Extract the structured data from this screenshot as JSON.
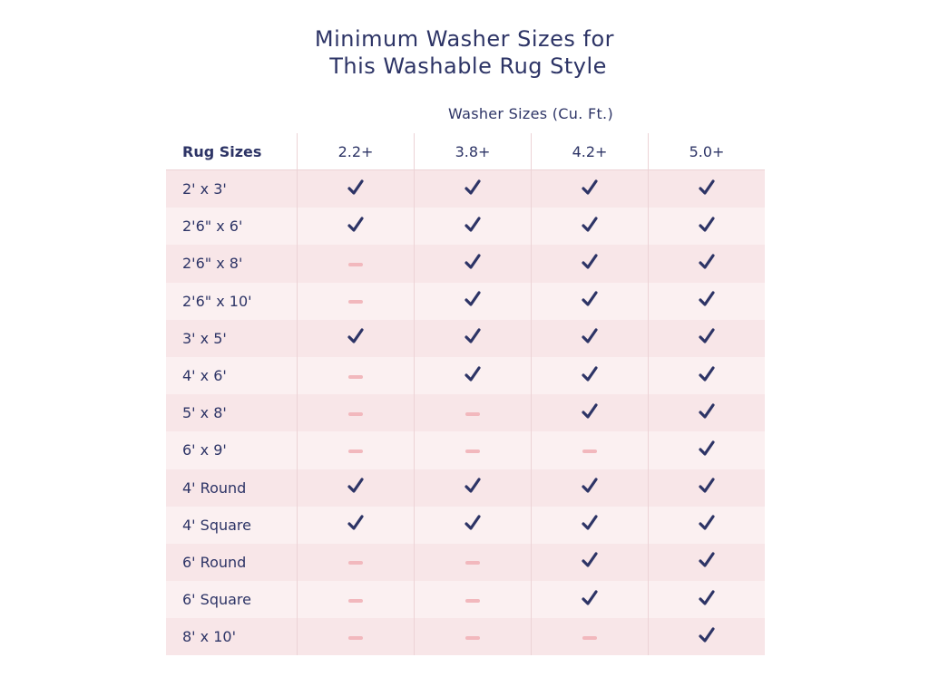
{
  "title": [
    "Minimum Washer Sizes for",
    " This Washable Rug Style"
  ],
  "washer_header": "Washer Sizes (Cu. Ft.)",
  "rug_header": "Rug Sizes",
  "columns": [
    "2.2+",
    "3.8+",
    "4.2+",
    "5.0+"
  ],
  "colors": {
    "text": "#2d3466",
    "check": "#2d3466",
    "dash": "#f2b8bd",
    "row_a": "#f8e6e8",
    "row_b": "#fbf0f1"
  },
  "rows": [
    {
      "rug": "2' x 3'",
      "fits": [
        true,
        true,
        true,
        true
      ]
    },
    {
      "rug": "2'6\" x 6'",
      "fits": [
        true,
        true,
        true,
        true
      ]
    },
    {
      "rug": "2'6\" x 8'",
      "fits": [
        false,
        true,
        true,
        true
      ]
    },
    {
      "rug": "2'6\" x 10'",
      "fits": [
        false,
        true,
        true,
        true
      ]
    },
    {
      "rug": "3' x 5'",
      "fits": [
        true,
        true,
        true,
        true
      ]
    },
    {
      "rug": "4' x 6'",
      "fits": [
        false,
        true,
        true,
        true
      ]
    },
    {
      "rug": "5' x 8'",
      "fits": [
        false,
        false,
        true,
        true
      ]
    },
    {
      "rug": "6' x 9'",
      "fits": [
        false,
        false,
        false,
        true
      ]
    },
    {
      "rug": "4' Round",
      "fits": [
        true,
        true,
        true,
        true
      ]
    },
    {
      "rug": "4' Square",
      "fits": [
        true,
        true,
        true,
        true
      ]
    },
    {
      "rug": "6' Round",
      "fits": [
        false,
        false,
        true,
        true
      ]
    },
    {
      "rug": "6' Square",
      "fits": [
        false,
        false,
        true,
        true
      ]
    },
    {
      "rug": "8' x 10'",
      "fits": [
        false,
        false,
        false,
        true
      ]
    }
  ]
}
